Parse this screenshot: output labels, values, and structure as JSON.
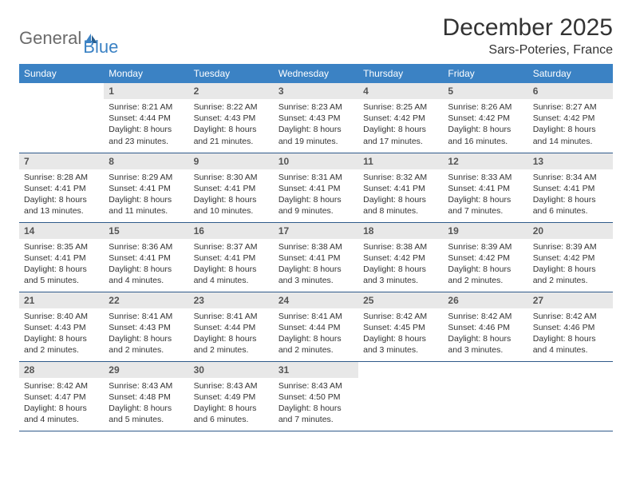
{
  "logo": {
    "word1": "General",
    "word2": "Blue"
  },
  "title": "December 2025",
  "location": "Sars-Poteries, France",
  "colors": {
    "header_bg": "#3b82c4",
    "header_text": "#ffffff",
    "daynum_bg": "#e8e8e8",
    "border": "#2f5a8a",
    "logo_gray": "#6b6b6b",
    "logo_blue": "#3b82c4"
  },
  "weekdays": [
    "Sunday",
    "Monday",
    "Tuesday",
    "Wednesday",
    "Thursday",
    "Friday",
    "Saturday"
  ],
  "weeks": [
    [
      null,
      {
        "n": "1",
        "sr": "Sunrise: 8:21 AM",
        "ss": "Sunset: 4:44 PM",
        "dl": "Daylight: 8 hours and 23 minutes."
      },
      {
        "n": "2",
        "sr": "Sunrise: 8:22 AM",
        "ss": "Sunset: 4:43 PM",
        "dl": "Daylight: 8 hours and 21 minutes."
      },
      {
        "n": "3",
        "sr": "Sunrise: 8:23 AM",
        "ss": "Sunset: 4:43 PM",
        "dl": "Daylight: 8 hours and 19 minutes."
      },
      {
        "n": "4",
        "sr": "Sunrise: 8:25 AM",
        "ss": "Sunset: 4:42 PM",
        "dl": "Daylight: 8 hours and 17 minutes."
      },
      {
        "n": "5",
        "sr": "Sunrise: 8:26 AM",
        "ss": "Sunset: 4:42 PM",
        "dl": "Daylight: 8 hours and 16 minutes."
      },
      {
        "n": "6",
        "sr": "Sunrise: 8:27 AM",
        "ss": "Sunset: 4:42 PM",
        "dl": "Daylight: 8 hours and 14 minutes."
      }
    ],
    [
      {
        "n": "7",
        "sr": "Sunrise: 8:28 AM",
        "ss": "Sunset: 4:41 PM",
        "dl": "Daylight: 8 hours and 13 minutes."
      },
      {
        "n": "8",
        "sr": "Sunrise: 8:29 AM",
        "ss": "Sunset: 4:41 PM",
        "dl": "Daylight: 8 hours and 11 minutes."
      },
      {
        "n": "9",
        "sr": "Sunrise: 8:30 AM",
        "ss": "Sunset: 4:41 PM",
        "dl": "Daylight: 8 hours and 10 minutes."
      },
      {
        "n": "10",
        "sr": "Sunrise: 8:31 AM",
        "ss": "Sunset: 4:41 PM",
        "dl": "Daylight: 8 hours and 9 minutes."
      },
      {
        "n": "11",
        "sr": "Sunrise: 8:32 AM",
        "ss": "Sunset: 4:41 PM",
        "dl": "Daylight: 8 hours and 8 minutes."
      },
      {
        "n": "12",
        "sr": "Sunrise: 8:33 AM",
        "ss": "Sunset: 4:41 PM",
        "dl": "Daylight: 8 hours and 7 minutes."
      },
      {
        "n": "13",
        "sr": "Sunrise: 8:34 AM",
        "ss": "Sunset: 4:41 PM",
        "dl": "Daylight: 8 hours and 6 minutes."
      }
    ],
    [
      {
        "n": "14",
        "sr": "Sunrise: 8:35 AM",
        "ss": "Sunset: 4:41 PM",
        "dl": "Daylight: 8 hours and 5 minutes."
      },
      {
        "n": "15",
        "sr": "Sunrise: 8:36 AM",
        "ss": "Sunset: 4:41 PM",
        "dl": "Daylight: 8 hours and 4 minutes."
      },
      {
        "n": "16",
        "sr": "Sunrise: 8:37 AM",
        "ss": "Sunset: 4:41 PM",
        "dl": "Daylight: 8 hours and 4 minutes."
      },
      {
        "n": "17",
        "sr": "Sunrise: 8:38 AM",
        "ss": "Sunset: 4:41 PM",
        "dl": "Daylight: 8 hours and 3 minutes."
      },
      {
        "n": "18",
        "sr": "Sunrise: 8:38 AM",
        "ss": "Sunset: 4:42 PM",
        "dl": "Daylight: 8 hours and 3 minutes."
      },
      {
        "n": "19",
        "sr": "Sunrise: 8:39 AM",
        "ss": "Sunset: 4:42 PM",
        "dl": "Daylight: 8 hours and 2 minutes."
      },
      {
        "n": "20",
        "sr": "Sunrise: 8:39 AM",
        "ss": "Sunset: 4:42 PM",
        "dl": "Daylight: 8 hours and 2 minutes."
      }
    ],
    [
      {
        "n": "21",
        "sr": "Sunrise: 8:40 AM",
        "ss": "Sunset: 4:43 PM",
        "dl": "Daylight: 8 hours and 2 minutes."
      },
      {
        "n": "22",
        "sr": "Sunrise: 8:41 AM",
        "ss": "Sunset: 4:43 PM",
        "dl": "Daylight: 8 hours and 2 minutes."
      },
      {
        "n": "23",
        "sr": "Sunrise: 8:41 AM",
        "ss": "Sunset: 4:44 PM",
        "dl": "Daylight: 8 hours and 2 minutes."
      },
      {
        "n": "24",
        "sr": "Sunrise: 8:41 AM",
        "ss": "Sunset: 4:44 PM",
        "dl": "Daylight: 8 hours and 2 minutes."
      },
      {
        "n": "25",
        "sr": "Sunrise: 8:42 AM",
        "ss": "Sunset: 4:45 PM",
        "dl": "Daylight: 8 hours and 3 minutes."
      },
      {
        "n": "26",
        "sr": "Sunrise: 8:42 AM",
        "ss": "Sunset: 4:46 PM",
        "dl": "Daylight: 8 hours and 3 minutes."
      },
      {
        "n": "27",
        "sr": "Sunrise: 8:42 AM",
        "ss": "Sunset: 4:46 PM",
        "dl": "Daylight: 8 hours and 4 minutes."
      }
    ],
    [
      {
        "n": "28",
        "sr": "Sunrise: 8:42 AM",
        "ss": "Sunset: 4:47 PM",
        "dl": "Daylight: 8 hours and 4 minutes."
      },
      {
        "n": "29",
        "sr": "Sunrise: 8:43 AM",
        "ss": "Sunset: 4:48 PM",
        "dl": "Daylight: 8 hours and 5 minutes."
      },
      {
        "n": "30",
        "sr": "Sunrise: 8:43 AM",
        "ss": "Sunset: 4:49 PM",
        "dl": "Daylight: 8 hours and 6 minutes."
      },
      {
        "n": "31",
        "sr": "Sunrise: 8:43 AM",
        "ss": "Sunset: 4:50 PM",
        "dl": "Daylight: 8 hours and 7 minutes."
      },
      null,
      null,
      null
    ]
  ]
}
